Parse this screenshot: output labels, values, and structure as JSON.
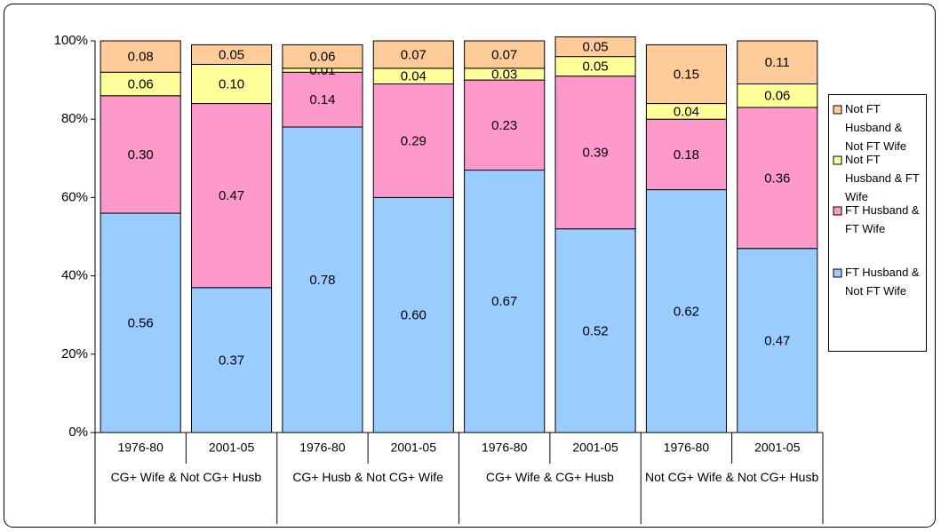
{
  "chart_data": {
    "type": "stacked_bar",
    "categories": [
      "1976-80",
      "2001-05",
      "1976-80",
      "2001-05",
      "1976-80",
      "2001-05",
      "1976-80",
      "2001-05"
    ],
    "groups": [
      "CG+ Wife & Not CG+ Husb",
      "CG+ Husb & Not CG+ Wife",
      "CG+ Wife & CG+ Husb",
      "Not CG+ Wife & Not CG+ Husb"
    ],
    "series": [
      {
        "name": "FT Husband & Not FT Wife",
        "color": "#99ccff",
        "values": [
          0.56,
          0.37,
          0.78,
          0.6,
          0.67,
          0.52,
          0.62,
          0.47
        ],
        "value_labels": [
          "0.56",
          "0.37",
          "0.78",
          "0.60",
          "0.67",
          "0.52",
          "0.62",
          "0.47"
        ]
      },
      {
        "name": "FT Husband & FT Wife",
        "color": "#ff99cc",
        "values": [
          0.3,
          0.47,
          0.14,
          0.29,
          0.23,
          0.39,
          0.18,
          0.36
        ],
        "value_labels": [
          "0.30",
          "0.47",
          "0.14",
          "0.29",
          "0.23",
          "0.39",
          "0.18",
          "0.36"
        ]
      },
      {
        "name": "Not FT Husband & FT Wife",
        "color": "#ffff99",
        "values": [
          0.06,
          0.1,
          0.01,
          0.04,
          0.03,
          0.05,
          0.04,
          0.06
        ],
        "value_labels": [
          "0.06",
          "0.10",
          "0.01",
          "0.04",
          "0.03",
          "0.05",
          "0.04",
          "0.06"
        ]
      },
      {
        "name": "Not FT Husband & Not FT Wife",
        "color": "#ffcc99",
        "values": [
          0.08,
          0.05,
          0.06,
          0.07,
          0.07,
          0.05,
          0.15,
          0.11
        ],
        "value_labels": [
          "0.08",
          "0.05",
          "0.06",
          "0.07",
          "0.07",
          "0.05",
          "0.15",
          "0.11"
        ]
      }
    ],
    "ylim": [
      0,
      1
    ],
    "yticks": [
      {
        "value": 0,
        "label": "0%"
      },
      {
        "value": 0.2,
        "label": "20%"
      },
      {
        "value": 0.4,
        "label": "40%"
      },
      {
        "value": 0.6,
        "label": "60%"
      },
      {
        "value": 0.8,
        "label": "80%"
      },
      {
        "value": 1,
        "label": "100%"
      }
    ],
    "legend": "right"
  }
}
